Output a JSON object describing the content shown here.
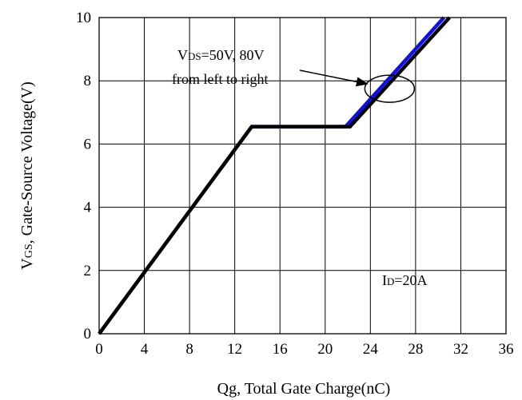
{
  "chart_data": {
    "type": "line",
    "title": "",
    "xlabel": "Qg, Total Gate Charge(nC)",
    "ylabel": "VGS, Gate-Source Voltage(V)",
    "xlim": [
      0,
      36
    ],
    "ylim": [
      0,
      10
    ],
    "x_ticks": [
      0,
      4,
      8,
      12,
      16,
      20,
      24,
      28,
      32,
      36
    ],
    "y_ticks": [
      0,
      2,
      4,
      6,
      8,
      10
    ],
    "grid": true,
    "series": [
      {
        "color": "#1010e0",
        "x": [
          0,
          13.5,
          21.8,
          30.5
        ],
        "y": [
          0,
          6.55,
          6.55,
          10
        ]
      },
      {
        "color": "#000000",
        "x": [
          0,
          13.5,
          22.2,
          31.0
        ],
        "y": [
          0,
          6.55,
          6.55,
          10
        ]
      }
    ],
    "annotations": [
      {
        "id": "vds",
        "lines": [
          "VDS=50V, 80V",
          "from left to right"
        ],
        "arrow_to": [
          25.7,
          7.75
        ],
        "ellipse_center": [
          25.7,
          7.75
        ]
      },
      {
        "id": "id",
        "text": "ID=20A"
      }
    ]
  }
}
